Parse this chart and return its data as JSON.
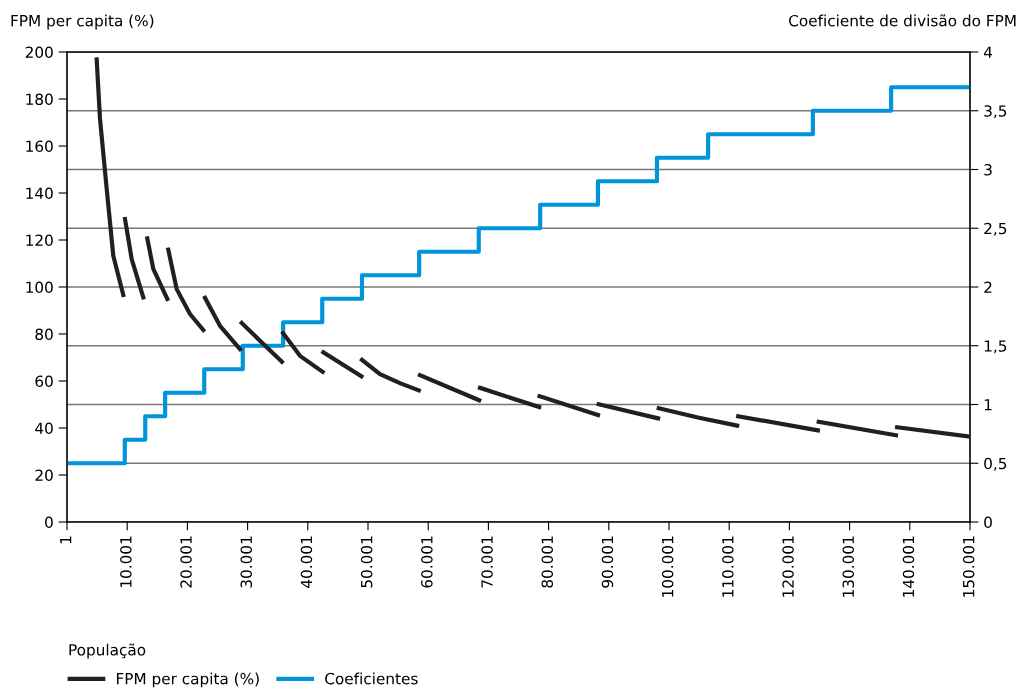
{
  "chart_data": {
    "type": "line",
    "ylabel": "FPM per capita (%)",
    "y2label": "Coeficiente de divisão do FPM",
    "xlabel": "População",
    "xlim": [
      1,
      150001
    ],
    "xticks": [
      1,
      {
        "value": 10001,
        "label": "10.001"
      },
      {
        "value": 20001,
        "label": "20.001"
      },
      {
        "value": 30001,
        "label": "30.001"
      },
      {
        "value": 40001,
        "label": "40.001"
      },
      {
        "value": 50001,
        "label": "50.001"
      },
      {
        "value": 60001,
        "label": "60.001"
      },
      {
        "value": 70001,
        "label": "70.001"
      },
      {
        "value": 80001,
        "label": "80.001"
      },
      {
        "value": 90001,
        "label": "90.001"
      },
      {
        "value": 100001,
        "label": "100.001"
      },
      {
        "value": 110001,
        "label": "110.001"
      },
      {
        "value": 120001,
        "label": "120.001"
      },
      {
        "value": 130001,
        "label": "130.001"
      },
      {
        "value": 140001,
        "label": "140.001"
      },
      {
        "value": 150001,
        "label": "150.001"
      }
    ],
    "ylim": [
      0,
      200
    ],
    "yticks": [
      0,
      20,
      40,
      60,
      80,
      100,
      120,
      140,
      160,
      180,
      200
    ],
    "y2lim": [
      0,
      4
    ],
    "y2ticks": [
      0,
      {
        "value": 0.5,
        "label": "0,5"
      },
      1,
      {
        "value": 1.5,
        "label": "1,5"
      },
      2,
      {
        "value": 2.5,
        "label": "2,5"
      },
      3,
      {
        "value": 3.5,
        "label": "3,5"
      },
      4
    ],
    "grid": "y2",
    "legend": "bottom",
    "marker": "none",
    "series": [
      {
        "name": "FPM per capita (%)",
        "color": "#231f20",
        "axis": "y",
        "x": [
          4933,
          5481,
          6594,
          7690,
          9352,
          9500,
          9634,
          10747,
          12673,
          13000,
          13338,
          14335,
          16660,
          16740,
          16826,
          18221,
          20430,
          22640,
          22780,
          22922,
          25413,
          28735,
          28880,
          29018,
          32057,
          35700,
          35800,
          35900,
          38701,
          42473,
          42520,
          42578,
          48900,
          48950,
          49000,
          51990,
          55310,
          58434,
          58530,
          58633,
          68467,
          68530,
          68600,
          78432,
          78470,
          78500,
          88200,
          88260,
          88330,
          98200,
          98250,
          98300,
          104800,
          111320,
          111400,
          111500,
          124740,
          124800,
          124870,
          137700,
          137800,
          137900,
          149900
        ],
        "values": [
          196.8,
          171.6,
          141.8,
          113.3,
          96.6,
          null,
          128.9,
          111.9,
          95.6,
          null,
          120.7,
          107.7,
          94.9,
          null,
          115.9,
          99.1,
          88.5,
          81.7,
          null,
          95.4,
          83.5,
          73.6,
          null,
          84.7,
          77.1,
          68.2,
          null,
          80.3,
          70.7,
          63.9,
          null,
          72.2,
          62.0,
          null,
          69.0,
          62.9,
          59.1,
          56.0,
          null,
          62.5,
          51.8,
          null,
          57.1,
          48.9,
          null,
          53.5,
          45.5,
          null,
          50.1,
          44.1,
          null,
          48.4,
          44.5,
          41.0,
          null,
          45.0,
          39.0,
          null,
          42.6,
          36.9,
          null,
          40.3,
          36.4
        ]
      },
      {
        "name": "Coeficientes",
        "color": "#0095da",
        "type": "step",
        "axis": "y2",
        "x": [
          1,
          9600,
          13000,
          16300,
          22800,
          29200,
          35900,
          42400,
          49000,
          58500,
          68400,
          78600,
          88200,
          98000,
          106500,
          123900,
          136900,
          150001
        ],
        "values": [
          0.5,
          0.7,
          0.9,
          1.1,
          1.3,
          1.5,
          1.7,
          1.9,
          2.1,
          2.3,
          2.5,
          2.7,
          2.9,
          3.1,
          3.3,
          3.5,
          3.7,
          3.7
        ]
      }
    ]
  }
}
